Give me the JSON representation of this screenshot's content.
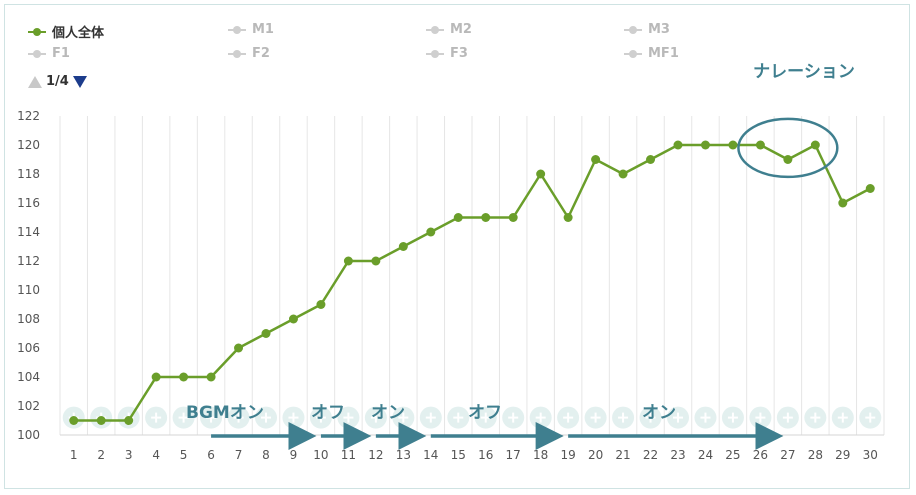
{
  "legend": {
    "items": [
      {
        "label": "個人全体",
        "active": true
      },
      {
        "label": "M1",
        "active": false
      },
      {
        "label": "M2",
        "active": false
      },
      {
        "label": "M3",
        "active": false
      },
      {
        "label": "F1",
        "active": false
      },
      {
        "label": "F2",
        "active": false
      },
      {
        "label": "F3",
        "active": false
      },
      {
        "label": "MF1",
        "active": false
      }
    ],
    "page_indicator": "1/4"
  },
  "colors": {
    "series": "#6a9e2a",
    "grid": "#e6e6e6",
    "annotation": "#3f7f8f",
    "inactive": "#cfcfcf",
    "plus_circle": "#e3f0ef"
  },
  "chart_data": {
    "type": "line",
    "x": [
      1,
      2,
      3,
      4,
      5,
      6,
      7,
      8,
      9,
      10,
      11,
      12,
      13,
      14,
      15,
      16,
      17,
      18,
      19,
      20,
      21,
      22,
      23,
      24,
      25,
      26,
      27,
      28,
      29,
      30
    ],
    "series": [
      {
        "name": "個人全体",
        "values": [
          101,
          101,
          101,
          104,
          104,
          104,
          106,
          107,
          108,
          109,
          112,
          112,
          113,
          114,
          115,
          115,
          115,
          118,
          115,
          119,
          118,
          119,
          120,
          120,
          120,
          120,
          119,
          120,
          116,
          117
        ]
      }
    ],
    "ylim": [
      100,
      122
    ],
    "yticks": [
      100,
      102,
      104,
      106,
      108,
      110,
      112,
      114,
      116,
      118,
      120,
      122
    ],
    "grid": "vertical",
    "legend_position": "top-left",
    "annotations": [
      {
        "text": "BGMオン",
        "from": 6,
        "to": 9.8
      },
      {
        "text": "オフ",
        "from": 10,
        "to": 11.8
      },
      {
        "text": "オン",
        "from": 12,
        "to": 13.8
      },
      {
        "text": "オフ",
        "from": 14,
        "to": 18.8
      },
      {
        "text": "オン",
        "from": 19,
        "to": 26.8
      }
    ],
    "callout": {
      "text": "ナレーション",
      "x_from": 25.2,
      "x_to": 28.8,
      "y_center": 119.8
    }
  }
}
